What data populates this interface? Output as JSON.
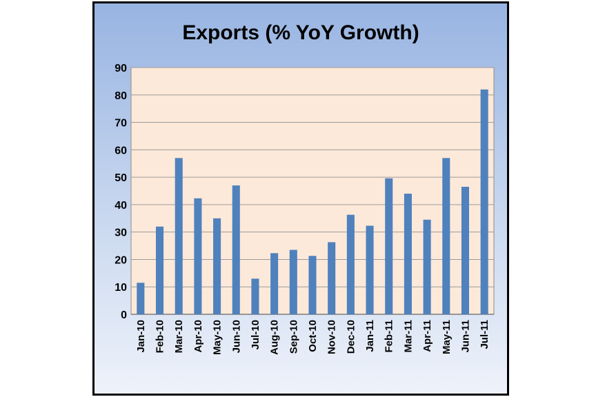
{
  "chart_data": {
    "type": "bar",
    "title": "Exports (% YoY Growth)",
    "xlabel": "",
    "ylabel": "",
    "ylim": [
      0,
      90
    ],
    "yticks": [
      "0",
      "10",
      "20",
      "30",
      "40",
      "50",
      "60",
      "70",
      "80",
      "90"
    ],
    "grid": true,
    "categories": [
      "Jan-10",
      "Feb-10",
      "Mar-10",
      "Apr-10",
      "May-10",
      "Jun-10",
      "Jul-10",
      "Aug-10",
      "Sep-10",
      "Oct-10",
      "Nov-10",
      "Dec-10",
      "Jan-11",
      "Feb-11",
      "Mar-11",
      "Apr-11",
      "May-11",
      "Jun-11",
      "Jul-11"
    ],
    "values": [
      11.5,
      32,
      57,
      42.3,
      35,
      47,
      13,
      22.3,
      23.5,
      21.3,
      26.3,
      36.3,
      32.3,
      49.6,
      44,
      34.5,
      57,
      46.5,
      82
    ],
    "colors": {
      "bar": "#4f81bd",
      "plot_bg": "#fde9d9",
      "grid": "#9a9a9a"
    }
  }
}
